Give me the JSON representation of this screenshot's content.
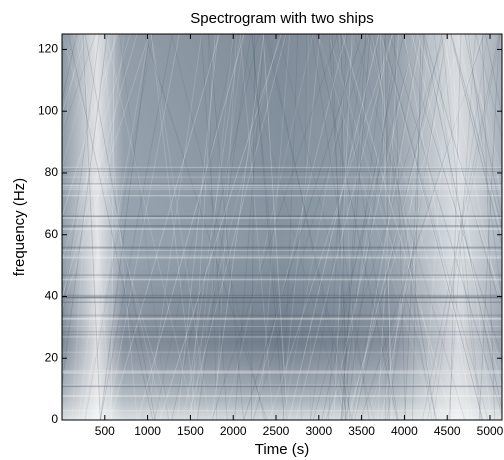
{
  "chart_data": {
    "type": "spectrogram",
    "title": "Spectrogram with two ships",
    "xlabel": "Time (s)",
    "ylabel": "frequency (Hz)",
    "xlim": [
      0,
      5140
    ],
    "ylim": [
      0,
      125
    ],
    "xticks": [
      500,
      1000,
      1500,
      2000,
      2500,
      3000,
      3500,
      4000,
      4500,
      5000
    ],
    "yticks": [
      0,
      20,
      40,
      60,
      80,
      100,
      120
    ]
  }
}
